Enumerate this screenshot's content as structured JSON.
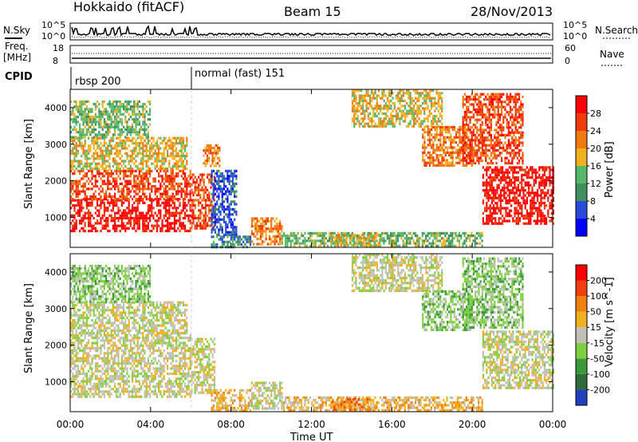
{
  "header": {
    "station": "Hokkaido (fitACF)",
    "beam": "Beam 15",
    "date": "28/Nov/2013"
  },
  "top_panels": {
    "nsky_label": "N.Sky",
    "nsearch_label": "N.Search",
    "noise_ticks_left": [
      "10^5",
      "10^0"
    ],
    "noise_ticks_right": [
      "10^5",
      "10^0"
    ],
    "freq_label": "Freq.",
    "freq_unit": "[MHz]",
    "freq_ticks": [
      "18",
      "8"
    ],
    "nave_label": "Nave",
    "nave_ticks": [
      "60",
      "0"
    ],
    "cpid_label": "CPID",
    "cpid_modes": [
      {
        "label": "rbsp 200",
        "start_hour": 0,
        "end_hour": 6
      },
      {
        "label": "normal (fast) 151",
        "start_hour": 6,
        "end_hour": 24
      }
    ]
  },
  "chart_data": [
    {
      "type": "heatmap",
      "panel": "power",
      "ylabel": "Slant Range [km]",
      "xlabel": "Time UT",
      "ylim": [
        180,
        4500
      ],
      "xlim_hours": [
        0,
        24
      ],
      "y_ticks": [
        "1000",
        "2000",
        "3000",
        "4000"
      ],
      "x_ticks": [
        "00:00",
        "04:00",
        "08:00",
        "12:00",
        "16:00",
        "20:00",
        "00:00"
      ],
      "colorbar": {
        "label": "Power [dB]",
        "ticks": [
          "4",
          "8",
          "12",
          "16",
          "20",
          "24",
          "28"
        ],
        "colors": [
          "#0000ff",
          "#2a4bd8",
          "#3f8f5f",
          "#56b86a",
          "#f0b020",
          "#f07a10",
          "#f03a08",
          "#ff0000"
        ]
      },
      "regions": [
        {
          "t0": 0.0,
          "t1": 6.0,
          "r0": 600,
          "r1": 1500,
          "level": 7
        },
        {
          "t0": 0.0,
          "t1": 6.0,
          "r0": 1500,
          "r1": 2300,
          "level": 6
        },
        {
          "t0": 0.0,
          "t1": 5.8,
          "r0": 2300,
          "r1": 3200,
          "level": 4
        },
        {
          "t0": 0.0,
          "t1": 4.0,
          "r0": 3200,
          "r1": 4200,
          "level": 3
        },
        {
          "t0": 6.0,
          "t1": 7.2,
          "r0": 700,
          "r1": 2200,
          "level": 6
        },
        {
          "t0": 6.6,
          "t1": 7.4,
          "r0": 2400,
          "r1": 3000,
          "level": 5
        },
        {
          "t0": 7.0,
          "t1": 8.3,
          "r0": 500,
          "r1": 2300,
          "level": 1
        },
        {
          "t0": 7.0,
          "t1": 9.0,
          "r0": 200,
          "r1": 500,
          "level": 2
        },
        {
          "t0": 9.0,
          "t1": 10.5,
          "r0": 250,
          "r1": 1000,
          "level": 5
        },
        {
          "t0": 10.5,
          "t1": 20.5,
          "r0": 200,
          "r1": 600,
          "level": 3
        },
        {
          "t0": 13.0,
          "t1": 15.5,
          "r0": 250,
          "r1": 550,
          "level": 4
        },
        {
          "t0": 14.0,
          "t1": 18.5,
          "r0": 3500,
          "r1": 4500,
          "level": 4
        },
        {
          "t0": 17.5,
          "t1": 20.0,
          "r0": 2400,
          "r1": 3500,
          "level": 5
        },
        {
          "t0": 19.5,
          "t1": 22.5,
          "r0": 2500,
          "r1": 4400,
          "level": 6
        },
        {
          "t0": 20.5,
          "t1": 24.0,
          "r0": 800,
          "r1": 2400,
          "level": 7
        }
      ]
    },
    {
      "type": "heatmap",
      "panel": "velocity",
      "ylabel": "Slant Range [km]",
      "xlabel": "Time UT",
      "ylim": [
        180,
        4500
      ],
      "xlim_hours": [
        0,
        24
      ],
      "y_ticks": [
        "1000",
        "2000",
        "3000",
        "4000"
      ],
      "x_ticks": [
        "00:00",
        "04:00",
        "08:00",
        "12:00",
        "16:00",
        "20:00",
        "00:00"
      ],
      "colorbar": {
        "label": "Velocity [m s^-1]",
        "ticks": [
          "200",
          "100",
          "50",
          "15",
          "-15",
          "-50",
          "-100",
          "-200"
        ],
        "colors": [
          "#2040c0",
          "#2f6b3a",
          "#3a9a3a",
          "#7fd040",
          "#c0c0b8",
          "#f0b020",
          "#f08010",
          "#f04010",
          "#ff0000"
        ]
      },
      "regions": [
        {
          "t0": 0.0,
          "t1": 6.0,
          "r0": 600,
          "r1": 2300,
          "level": 4
        },
        {
          "t0": 0.0,
          "t1": 5.8,
          "r0": 2300,
          "r1": 3200,
          "level": 4
        },
        {
          "t0": 0.0,
          "t1": 4.0,
          "r0": 3200,
          "r1": 4200,
          "level": 3
        },
        {
          "t0": 6.0,
          "t1": 7.2,
          "r0": 700,
          "r1": 2200,
          "level": 4
        },
        {
          "t0": 7.0,
          "t1": 9.0,
          "r0": 200,
          "r1": 800,
          "level": 5
        },
        {
          "t0": 9.0,
          "t1": 10.5,
          "r0": 250,
          "r1": 1000,
          "level": 4
        },
        {
          "t0": 10.5,
          "t1": 20.5,
          "r0": 200,
          "r1": 600,
          "level": 5
        },
        {
          "t0": 13.0,
          "t1": 15.0,
          "r0": 250,
          "r1": 550,
          "level": 6
        },
        {
          "t0": 14.0,
          "t1": 18.5,
          "r0": 3500,
          "r1": 4500,
          "level": 4
        },
        {
          "t0": 17.5,
          "t1": 20.0,
          "r0": 2400,
          "r1": 3500,
          "level": 3
        },
        {
          "t0": 19.5,
          "t1": 22.5,
          "r0": 2500,
          "r1": 4400,
          "level": 3
        },
        {
          "t0": 20.5,
          "t1": 24.0,
          "r0": 800,
          "r1": 2400,
          "level": 4
        }
      ]
    }
  ]
}
